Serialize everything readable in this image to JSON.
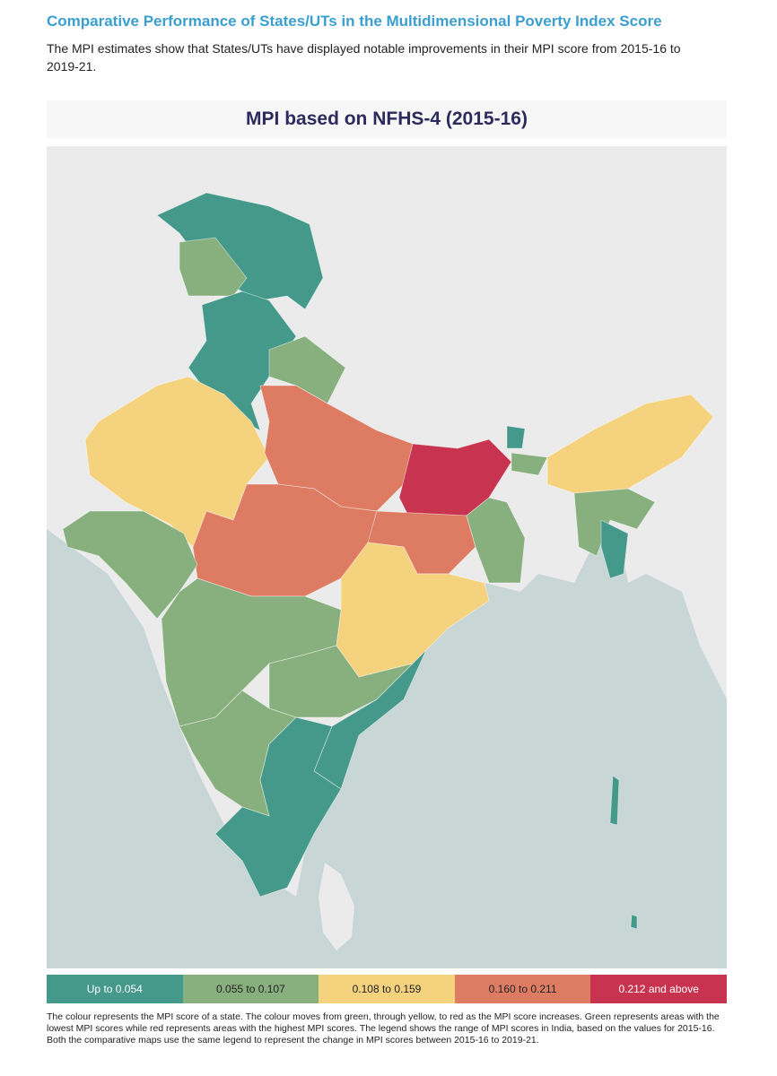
{
  "header": {
    "title": "Comparative Performance of States/UTs in the Multidimensional Poverty Index Score",
    "description": "The MPI estimates show that States/UTs have displayed notable improvements in their MPI score from 2015-16 to 2019-21."
  },
  "map": {
    "title": "MPI based on NFHS-4 (2015-16)"
  },
  "legend": {
    "items": [
      {
        "label": "Up to 0.054",
        "color": "#44998a",
        "text_color": "#ffffff"
      },
      {
        "label": "0.055 to 0.107",
        "color": "#88b07e",
        "text_color": "#222222"
      },
      {
        "label": "0.108 to 0.159",
        "color": "#f5d27d",
        "text_color": "#222222"
      },
      {
        "label": "0.160 to 0.211",
        "color": "#de7b63",
        "text_color": "#222222"
      },
      {
        "label": "0.212 and above",
        "color": "#c8344f",
        "text_color": "#ffffff"
      }
    ]
  },
  "footnote": "The colour represents the MPI score of a state. The colour moves from green, through yellow, to red as the MPI score increases. Green represents areas with the lowest MPI scores while red represents areas with the highest MPI scores. The legend shows the range of MPI scores in India, based on the values for 2015-16. Both the comparative maps use the same legend to represent the change in MPI scores between 2015-16 to 2019-21."
}
